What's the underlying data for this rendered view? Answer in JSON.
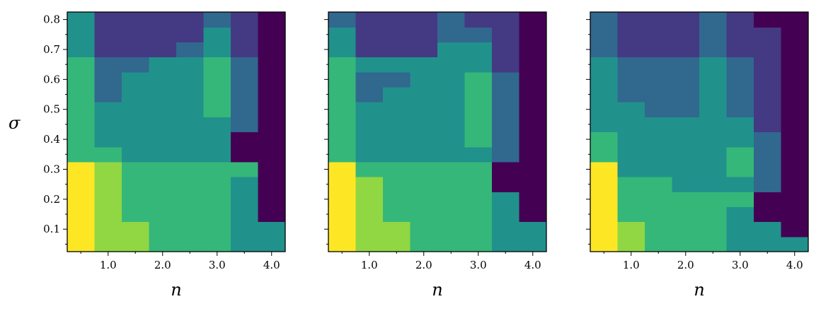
{
  "chart_data": {
    "type": "heatmap",
    "xlabel": "n",
    "ylabel": "σ",
    "x": [
      0.5,
      1.0,
      1.5,
      2.0,
      2.5,
      3.0,
      3.5,
      4.0
    ],
    "y": [
      0.05,
      0.1,
      0.15,
      0.2,
      0.25,
      0.3,
      0.35,
      0.4,
      0.45,
      0.5,
      0.55,
      0.6,
      0.65,
      0.7,
      0.75,
      0.8
    ],
    "xlim": [
      0.25,
      4.25
    ],
    "ylim": [
      0.025,
      0.825
    ],
    "x_ticks": [
      1.0,
      2.0,
      3.0,
      4.0
    ],
    "x_tick_labels": [
      "1.0",
      "2.0",
      "3.0",
      "4.0"
    ],
    "y_ticks": [
      0.1,
      0.2,
      0.3,
      0.4,
      0.5,
      0.6,
      0.7,
      0.8
    ],
    "y_tick_labels": [
      "0.1",
      "0.2",
      "0.3",
      "0.4",
      "0.5",
      "0.6",
      "0.7",
      "0.8"
    ],
    "level_colors": [
      "#440154",
      "#443983",
      "#31688e",
      "#21918c",
      "#35b779",
      "#90d743",
      "#fde725"
    ],
    "panels": [
      {
        "values": [
          [
            6,
            5,
            5,
            4,
            4,
            4,
            3,
            3
          ],
          [
            6,
            5,
            5,
            4,
            4,
            4,
            3,
            3
          ],
          [
            6,
            5,
            4,
            4,
            4,
            4,
            3,
            0
          ],
          [
            6,
            5,
            4,
            4,
            4,
            4,
            3,
            0
          ],
          [
            6,
            5,
            4,
            4,
            4,
            4,
            3,
            0
          ],
          [
            6,
            5,
            4,
            4,
            4,
            4,
            4,
            0
          ],
          [
            4,
            4,
            3,
            3,
            3,
            3,
            0,
            0
          ],
          [
            4,
            3,
            3,
            3,
            3,
            3,
            0,
            0
          ],
          [
            4,
            3,
            3,
            3,
            3,
            3,
            2,
            0
          ],
          [
            4,
            3,
            3,
            3,
            3,
            4,
            2,
            0
          ],
          [
            4,
            2,
            3,
            3,
            3,
            4,
            2,
            0
          ],
          [
            4,
            2,
            3,
            3,
            3,
            4,
            2,
            0
          ],
          [
            4,
            2,
            2,
            3,
            3,
            4,
            2,
            0
          ],
          [
            3,
            1,
            1,
            1,
            2,
            3,
            1,
            0
          ],
          [
            3,
            1,
            1,
            1,
            1,
            3,
            1,
            0
          ],
          [
            3,
            1,
            1,
            1,
            1,
            2,
            1,
            0
          ]
        ]
      },
      {
        "values": [
          [
            6,
            5,
            5,
            4,
            4,
            4,
            3,
            3
          ],
          [
            6,
            5,
            5,
            4,
            4,
            4,
            3,
            3
          ],
          [
            6,
            5,
            4,
            4,
            4,
            4,
            3,
            0
          ],
          [
            6,
            5,
            4,
            4,
            4,
            4,
            3,
            0
          ],
          [
            6,
            5,
            4,
            4,
            4,
            4,
            0,
            0
          ],
          [
            6,
            4,
            4,
            4,
            4,
            4,
            0,
            0
          ],
          [
            4,
            3,
            3,
            3,
            3,
            3,
            2,
            0
          ],
          [
            4,
            3,
            3,
            3,
            3,
            4,
            2,
            0
          ],
          [
            4,
            3,
            3,
            3,
            3,
            4,
            2,
            0
          ],
          [
            4,
            3,
            3,
            3,
            3,
            4,
            2,
            0
          ],
          [
            4,
            2,
            3,
            3,
            3,
            4,
            2,
            0
          ],
          [
            4,
            2,
            2,
            3,
            3,
            4,
            2,
            0
          ],
          [
            4,
            3,
            3,
            3,
            3,
            3,
            1,
            0
          ],
          [
            3,
            1,
            1,
            1,
            3,
            3,
            1,
            0
          ],
          [
            3,
            1,
            1,
            1,
            2,
            2,
            1,
            0
          ],
          [
            2,
            1,
            1,
            1,
            2,
            1,
            1,
            0
          ]
        ]
      },
      {
        "values": [
          [
            6,
            5,
            4,
            4,
            4,
            3,
            3,
            3
          ],
          [
            6,
            5,
            4,
            4,
            4,
            3,
            3,
            0
          ],
          [
            6,
            4,
            4,
            4,
            4,
            3,
            0,
            0
          ],
          [
            6,
            4,
            4,
            4,
            4,
            4,
            0,
            0
          ],
          [
            6,
            4,
            4,
            3,
            3,
            3,
            2,
            0
          ],
          [
            6,
            3,
            3,
            3,
            3,
            4,
            2,
            0
          ],
          [
            4,
            3,
            3,
            3,
            3,
            4,
            2,
            0
          ],
          [
            4,
            3,
            3,
            3,
            3,
            3,
            2,
            0
          ],
          [
            3,
            3,
            3,
            3,
            3,
            3,
            1,
            0
          ],
          [
            3,
            3,
            2,
            2,
            3,
            2,
            1,
            0
          ],
          [
            3,
            2,
            2,
            2,
            3,
            2,
            1,
            0
          ],
          [
            3,
            2,
            2,
            2,
            3,
            2,
            1,
            0
          ],
          [
            3,
            2,
            2,
            2,
            3,
            2,
            1,
            0
          ],
          [
            2,
            1,
            1,
            1,
            2,
            1,
            1,
            0
          ],
          [
            2,
            1,
            1,
            1,
            2,
            1,
            1,
            0
          ],
          [
            2,
            1,
            1,
            1,
            2,
            1,
            0,
            0
          ]
        ]
      }
    ]
  }
}
